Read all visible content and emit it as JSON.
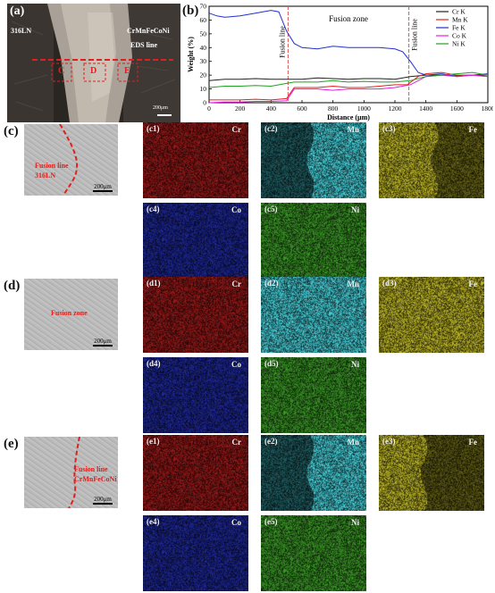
{
  "panel_a": {
    "label": "(a)",
    "left_material": "316LN",
    "right_material": "CrMnFeCoNi",
    "eds_line": "EDS line",
    "region_c": "C",
    "region_d": "D",
    "region_e": "E",
    "scale": "200μm"
  },
  "panel_b": {
    "label": "(b)"
  },
  "chart_data": {
    "type": "line",
    "xlabel": "Distance (μm)",
    "ylabel": "Weight (%)",
    "xlim": [
      0,
      1800
    ],
    "ylim": [
      0,
      70
    ],
    "xticks": [
      "0",
      "200",
      "400",
      "600",
      "800",
      "1000",
      "1200",
      "1400",
      "1600",
      "1800"
    ],
    "yticks": [
      "0",
      "10",
      "20",
      "30",
      "40",
      "50",
      "60",
      "70"
    ],
    "legend_position": "top-right",
    "annotations": {
      "left_line": "Fusion line",
      "zone": "Fusion zone",
      "right_line": "Fusion line"
    },
    "fusion_line_x": [
      510,
      1290
    ],
    "series": [
      {
        "name": "Cr K",
        "color": "#222222",
        "x": [
          0,
          100,
          200,
          300,
          400,
          500,
          600,
          700,
          800,
          900,
          1000,
          1100,
          1200,
          1300,
          1400,
          1500,
          1600,
          1700,
          1800
        ],
        "y": [
          16,
          17,
          17,
          17.5,
          17,
          17,
          17,
          18,
          17.5,
          17,
          17.5,
          17.5,
          17,
          19,
          20,
          20,
          19.5,
          20,
          20
        ]
      },
      {
        "name": "Mn K",
        "color": "#e02020",
        "x": [
          0,
          100,
          200,
          300,
          400,
          500,
          550,
          700,
          800,
          900,
          1000,
          1100,
          1200,
          1280,
          1350,
          1400,
          1500,
          1600,
          1700,
          1800
        ],
        "y": [
          2,
          2,
          2,
          2.5,
          2,
          3,
          11,
          11,
          12,
          11,
          11,
          12,
          13,
          13,
          19,
          21,
          22,
          20,
          20,
          19
        ]
      },
      {
        "name": "Fe K",
        "color": "#2030d0",
        "x": [
          0,
          50,
          100,
          200,
          300,
          400,
          450,
          500,
          550,
          600,
          700,
          800,
          900,
          1000,
          1100,
          1200,
          1250,
          1300,
          1350,
          1400,
          1500,
          1600,
          1700,
          1800
        ],
        "y": [
          65,
          63,
          62,
          63,
          65,
          67,
          66,
          52,
          43,
          40,
          39,
          41,
          40,
          40,
          40,
          39,
          37,
          30,
          22,
          20,
          21,
          19,
          20,
          21
        ]
      },
      {
        "name": "Co K",
        "color": "#e020e0",
        "x": [
          0,
          100,
          200,
          300,
          400,
          500,
          550,
          700,
          800,
          900,
          1000,
          1100,
          1200,
          1300,
          1400,
          1500,
          1600,
          1700,
          1800
        ],
        "y": [
          0,
          0.5,
          0.5,
          1,
          1,
          1.5,
          10,
          10,
          9,
          10,
          10,
          10,
          11,
          13,
          19,
          20,
          19,
          20,
          19
        ]
      },
      {
        "name": "Ni K",
        "color": "#20a020",
        "x": [
          0,
          100,
          200,
          300,
          400,
          500,
          550,
          700,
          800,
          900,
          1000,
          1100,
          1200,
          1300,
          1400,
          1500,
          1600,
          1700,
          1800
        ],
        "y": [
          11,
          12,
          12,
          12.5,
          12,
          14,
          15,
          15,
          16,
          15,
          15.5,
          15,
          15,
          16,
          19,
          20,
          21,
          22,
          20
        ]
      }
    ]
  },
  "rows": [
    {
      "key": "c",
      "label": "(c)",
      "sem_text": [
        "Fusion line",
        "316LN"
      ],
      "scale": "200μm",
      "maps": [
        {
          "tag": "(c1)",
          "element": "Cr"
        },
        {
          "tag": "(c2)",
          "element": "Mn"
        },
        {
          "tag": "(c3)",
          "element": "Fe"
        },
        {
          "tag": "(c4)",
          "element": "Co"
        },
        {
          "tag": "(c5)",
          "element": "Ni"
        }
      ]
    },
    {
      "key": "d",
      "label": "(d)",
      "sem_text": [
        "Fusion zone"
      ],
      "scale": "200μm",
      "maps": [
        {
          "tag": "(d1)",
          "element": "Cr"
        },
        {
          "tag": "(d2)",
          "element": "Mn"
        },
        {
          "tag": "(d3)",
          "element": "Fe"
        },
        {
          "tag": "(d4)",
          "element": "Co"
        },
        {
          "tag": "(d5)",
          "element": "Ni"
        }
      ]
    },
    {
      "key": "e",
      "label": "(e)",
      "sem_text": [
        "Fusion line",
        "CrMnFeCoNi"
      ],
      "scale": "200μm",
      "maps": [
        {
          "tag": "(e1)",
          "element": "Cr"
        },
        {
          "tag": "(e2)",
          "element": "Mn"
        },
        {
          "tag": "(e3)",
          "element": "Fe"
        },
        {
          "tag": "(e4)",
          "element": "Co"
        },
        {
          "tag": "(e5)",
          "element": "Ni"
        }
      ]
    }
  ],
  "element_colors": {
    "Cr": "#7a1414",
    "Mn": "#3aa8b0",
    "Fe": "#9a9420",
    "Co": "#18207a",
    "Ni": "#2f7a1f"
  }
}
